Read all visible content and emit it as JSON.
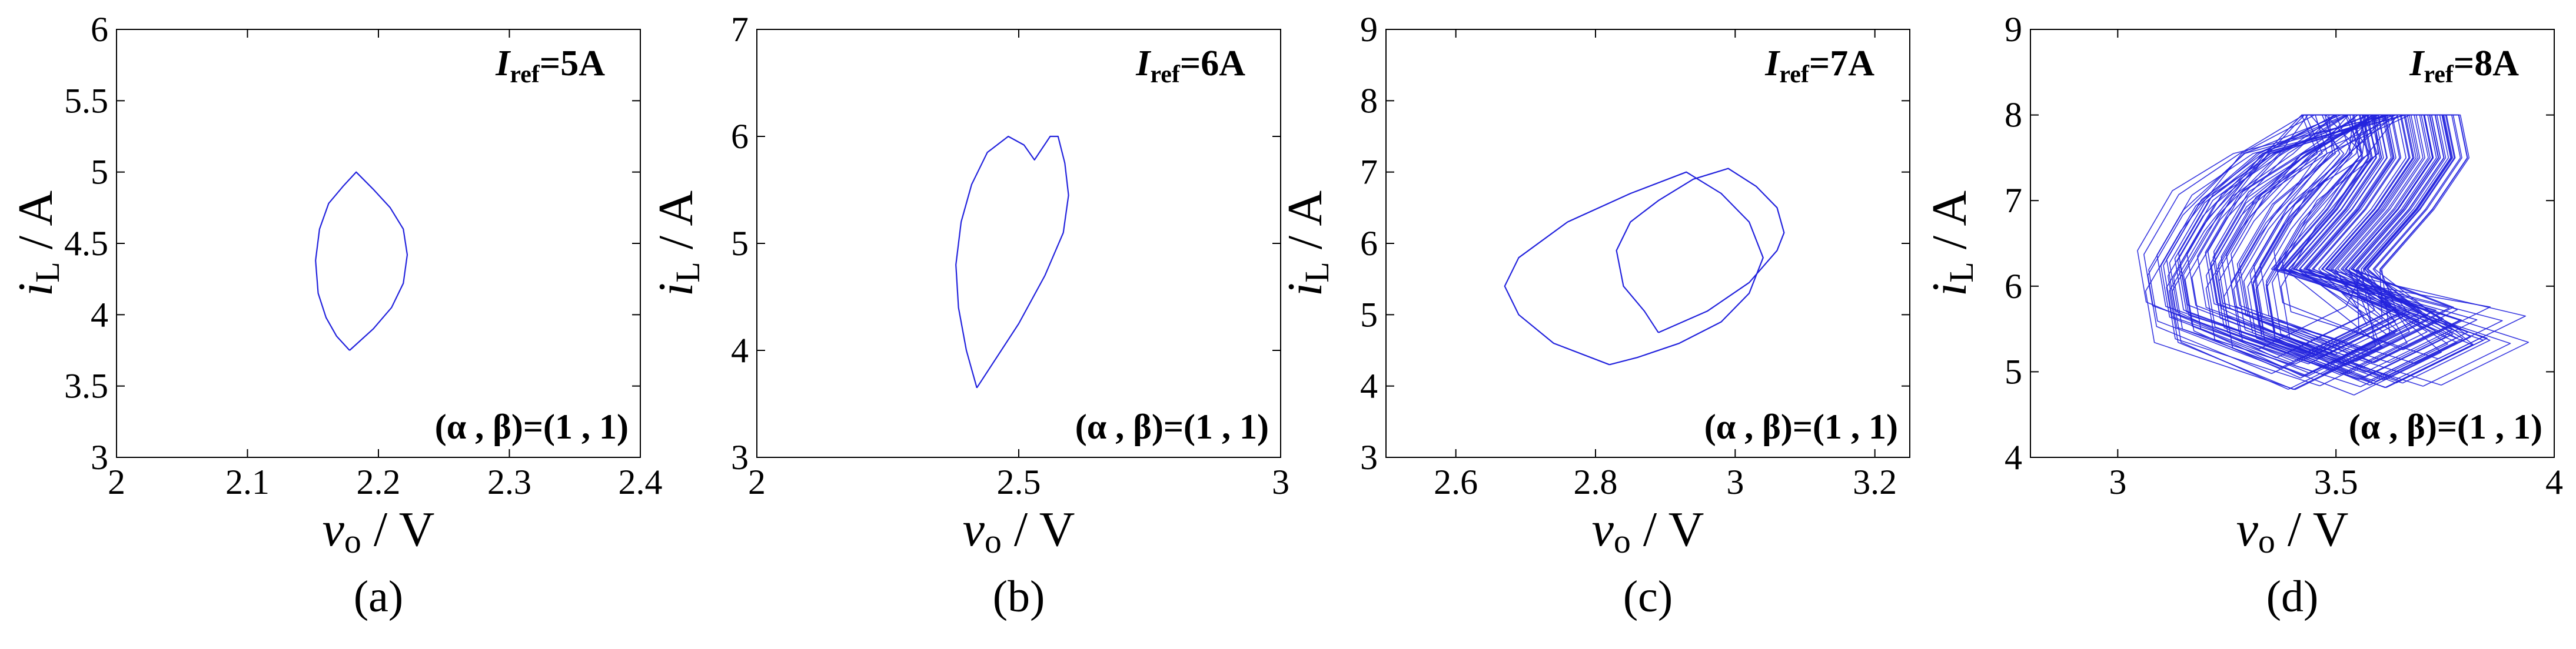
{
  "figure": {
    "panels": [
      {
        "caption": "(a)",
        "annotation_main": "I",
        "annotation_sub": "ref",
        "annotation_value": "=5A",
        "param_label": "(α , β)=(1 , 1)"
      },
      {
        "caption": "(b)",
        "annotation_main": "I",
        "annotation_sub": "ref",
        "annotation_value": "=6A",
        "param_label": "(α , β)=(1 , 1)"
      },
      {
        "caption": "(c)",
        "annotation_main": "I",
        "annotation_sub": "ref",
        "annotation_value": "=7A",
        "param_label": "(α , β)=(1 , 1)"
      },
      {
        "caption": "(d)",
        "annotation_main": "I",
        "annotation_sub": "ref",
        "annotation_value": "=8A",
        "param_label": "(α , β)=(1 , 1)"
      }
    ],
    "line_color": "#2222dd"
  },
  "chart_data": [
    {
      "type": "line",
      "title": "",
      "xlabel": "vo / V",
      "ylabel": "iL / A",
      "xlim": [
        2,
        2.4
      ],
      "ylim": [
        3,
        6
      ],
      "xticks": [
        "2",
        "2.1",
        "2.2",
        "2.3",
        "2.4"
      ],
      "xtick_values": [
        2,
        2.1,
        2.2,
        2.3,
        2.4
      ],
      "yticks": [
        "3",
        "3.5",
        "4",
        "4.5",
        "5",
        "5.5",
        "6"
      ],
      "ytick_values": [
        3,
        3.5,
        4,
        4.5,
        5,
        5.5,
        6
      ],
      "grid": false,
      "series": [
        {
          "x": [
            2.178,
            2.196,
            2.21,
            2.219,
            2.222,
            2.219,
            2.209,
            2.196,
            2.183,
            2.173,
            2.162,
            2.155,
            2.152,
            2.154,
            2.16,
            2.168,
            2.178
          ],
          "y": [
            3.75,
            3.9,
            4.05,
            4.22,
            4.42,
            4.6,
            4.75,
            4.88,
            5.0,
            4.9,
            4.78,
            4.6,
            4.38,
            4.15,
            3.98,
            3.85,
            3.75
          ]
        }
      ]
    },
    {
      "type": "line",
      "title": "",
      "xlabel": "vo / V",
      "ylabel": "iL / A",
      "xlim": [
        2,
        3
      ],
      "ylim": [
        3,
        7
      ],
      "xticks": [
        "2",
        "2.5",
        "3"
      ],
      "xtick_values": [
        2,
        2.5,
        3
      ],
      "yticks": [
        "3",
        "4",
        "5",
        "6",
        "7"
      ],
      "ytick_values": [
        3,
        4,
        5,
        6,
        7
      ],
      "grid": false,
      "series": [
        {
          "x": [
            2.42,
            2.5,
            2.55,
            2.585,
            2.595,
            2.588,
            2.575,
            2.56,
            2.53,
            2.51,
            2.48,
            2.44,
            2.41,
            2.39,
            2.38,
            2.385,
            2.4,
            2.42
          ],
          "y": [
            3.65,
            4.25,
            4.7,
            5.1,
            5.45,
            5.75,
            6.0,
            6.0,
            5.78,
            5.92,
            6.0,
            5.85,
            5.55,
            5.2,
            4.8,
            4.4,
            4.0,
            3.65
          ]
        }
      ]
    },
    {
      "type": "line",
      "title": "",
      "xlabel": "vo / V",
      "ylabel": "iL / A",
      "xlim": [
        2.5,
        3.25
      ],
      "ylim": [
        3,
        9
      ],
      "xticks": [
        "2.6",
        "2.8",
        "3",
        "3.2"
      ],
      "xtick_values": [
        2.6,
        2.8,
        3,
        3.2
      ],
      "yticks": [
        "3",
        "4",
        "5",
        "6",
        "7",
        "8",
        "9"
      ],
      "ytick_values": [
        3,
        4,
        5,
        6,
        7,
        8,
        9
      ],
      "grid": false,
      "series": [
        {
          "x": [
            2.82,
            2.74,
            2.69,
            2.67,
            2.69,
            2.76,
            2.85,
            2.93,
            2.98,
            3.02,
            3.04,
            3.02,
            2.98,
            2.92,
            2.86,
            2.82
          ],
          "y": [
            4.3,
            4.6,
            5.0,
            5.4,
            5.8,
            6.3,
            6.7,
            7.0,
            6.7,
            6.3,
            5.8,
            5.3,
            4.9,
            4.6,
            4.4,
            4.3
          ]
        },
        {
          "x": [
            2.89,
            2.96,
            3.02,
            3.06,
            3.07,
            3.06,
            3.03,
            2.99,
            2.94,
            2.89,
            2.85,
            2.83,
            2.84,
            2.87,
            2.89
          ],
          "y": [
            4.75,
            5.05,
            5.45,
            5.9,
            6.15,
            6.5,
            6.8,
            7.05,
            6.9,
            6.6,
            6.3,
            5.9,
            5.4,
            5.05,
            4.75
          ]
        }
      ]
    },
    {
      "type": "line",
      "title": "",
      "xlabel": "vo / V",
      "ylabel": "iL / A",
      "xlim": [
        2.8,
        4
      ],
      "ylim": [
        4,
        9
      ],
      "xticks": [
        "3",
        "3.5",
        "4"
      ],
      "xtick_values": [
        3,
        3.5,
        4
      ],
      "yticks": [
        "4",
        "5",
        "6",
        "7",
        "8",
        "9"
      ],
      "ytick_values": [
        4,
        5,
        6,
        7,
        8,
        9
      ],
      "grid": false,
      "note": "chaotic attractor: many overlapping loops; outer envelope approx x 3.03–3.82, y 4.72–8.0",
      "series": []
    }
  ]
}
